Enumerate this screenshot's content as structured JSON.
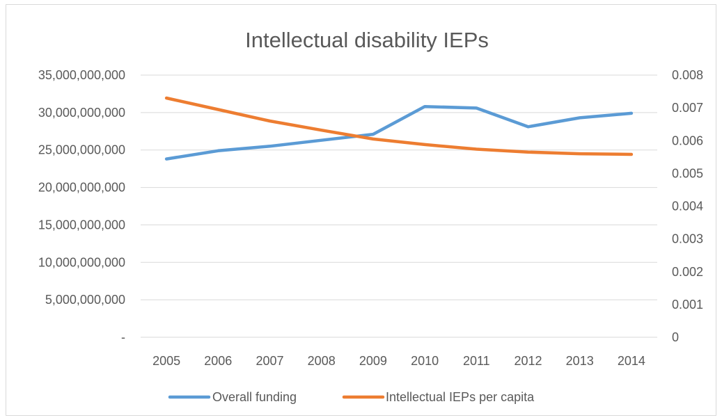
{
  "chart_data": {
    "type": "line",
    "title": "Intellectual disability IEPs",
    "categories": [
      "2005",
      "2006",
      "2007",
      "2008",
      "2009",
      "2010",
      "2011",
      "2012",
      "2013",
      "2014"
    ],
    "y_left": {
      "ylim": [
        0,
        35000000000
      ],
      "ticks": [
        0,
        5000000000,
        10000000000,
        15000000000,
        20000000000,
        25000000000,
        30000000000,
        35000000000
      ],
      "tick_labels": [
        "-",
        "5,000,000,000",
        "10,000,000,000",
        "15,000,000,000",
        "20,000,000,000",
        "25,000,000,000",
        "30,000,000,000",
        "35,000,000,000"
      ]
    },
    "y_right": {
      "ylim": [
        0,
        0.008
      ],
      "ticks": [
        0,
        0.001,
        0.002,
        0.003,
        0.004,
        0.005,
        0.006,
        0.007,
        0.008
      ],
      "tick_labels": [
        "0",
        "0.001",
        "0.002",
        "0.003",
        "0.004",
        "0.005",
        "0.006",
        "0.007",
        "0.008"
      ]
    },
    "series": [
      {
        "name": "Overall funding",
        "axis": "left",
        "color": "#5b9bd5",
        "values": [
          23800000000,
          24900000000,
          25500000000,
          26300000000,
          27100000000,
          30800000000,
          30600000000,
          28100000000,
          29300000000,
          29900000000
        ]
      },
      {
        "name": "Intellectual IEPs per capita",
        "axis": "right",
        "color": "#ed7d31",
        "values": [
          0.0073,
          0.00695,
          0.0066,
          0.00632,
          0.00605,
          0.00588,
          0.00574,
          0.00565,
          0.0056,
          0.00558
        ]
      }
    ],
    "grid": true,
    "legend_position": "bottom"
  }
}
